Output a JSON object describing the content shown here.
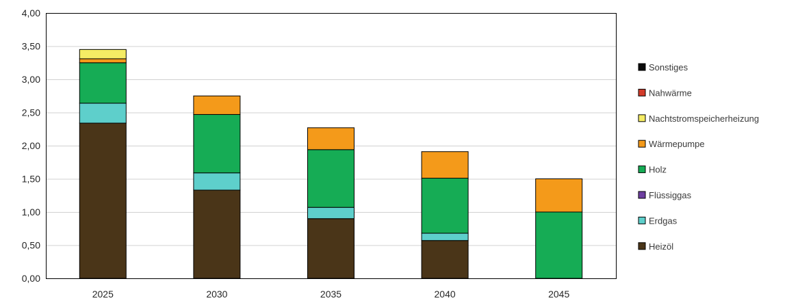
{
  "chart_data": {
    "type": "bar",
    "stacked": true,
    "categories": [
      "2025",
      "2030",
      "2035",
      "2040",
      "2045"
    ],
    "ylim": [
      0,
      4
    ],
    "yticks": [
      "0,00",
      "0,50",
      "1,00",
      "1,50",
      "2,00",
      "2,50",
      "3,00",
      "3,50",
      "4,00"
    ],
    "grid": true,
    "legend_position": "right",
    "title": "",
    "xlabel": "",
    "ylabel": "",
    "series": [
      {
        "name": "Heizöl",
        "color": "#4a3518",
        "values": [
          2.34,
          1.33,
          0.9,
          0.57,
          0
        ]
      },
      {
        "name": "Erdgas",
        "color": "#5ecfcb",
        "values": [
          0.3,
          0.26,
          0.17,
          0.11,
          0
        ]
      },
      {
        "name": "Flüssiggas",
        "color": "#6e3fa0",
        "values": [
          0,
          0,
          0,
          0,
          0
        ]
      },
      {
        "name": "Holz",
        "color": "#16ac55",
        "values": [
          0.61,
          0.88,
          0.87,
          0.83,
          1.0
        ]
      },
      {
        "name": "Wärmepumpe",
        "color": "#f49a1a",
        "values": [
          0.06,
          0.28,
          0.33,
          0.4,
          0.5
        ]
      },
      {
        "name": "Nachtstromspeicherheizung",
        "color": "#f5ec64",
        "values": [
          0.14,
          0,
          0,
          0,
          0
        ]
      },
      {
        "name": "Nahwärme",
        "color": "#d23b2a",
        "values": [
          0,
          0,
          0,
          0,
          0
        ]
      },
      {
        "name": "Sonstiges",
        "color": "#0a0a0a",
        "values": [
          0,
          0,
          0,
          0,
          0
        ]
      }
    ],
    "legend_order": [
      "Sonstiges",
      "Nahwärme",
      "Nachtstromspeicherheizung",
      "Wärmepumpe",
      "Holz",
      "Flüssiggas",
      "Erdgas",
      "Heizöl"
    ]
  }
}
